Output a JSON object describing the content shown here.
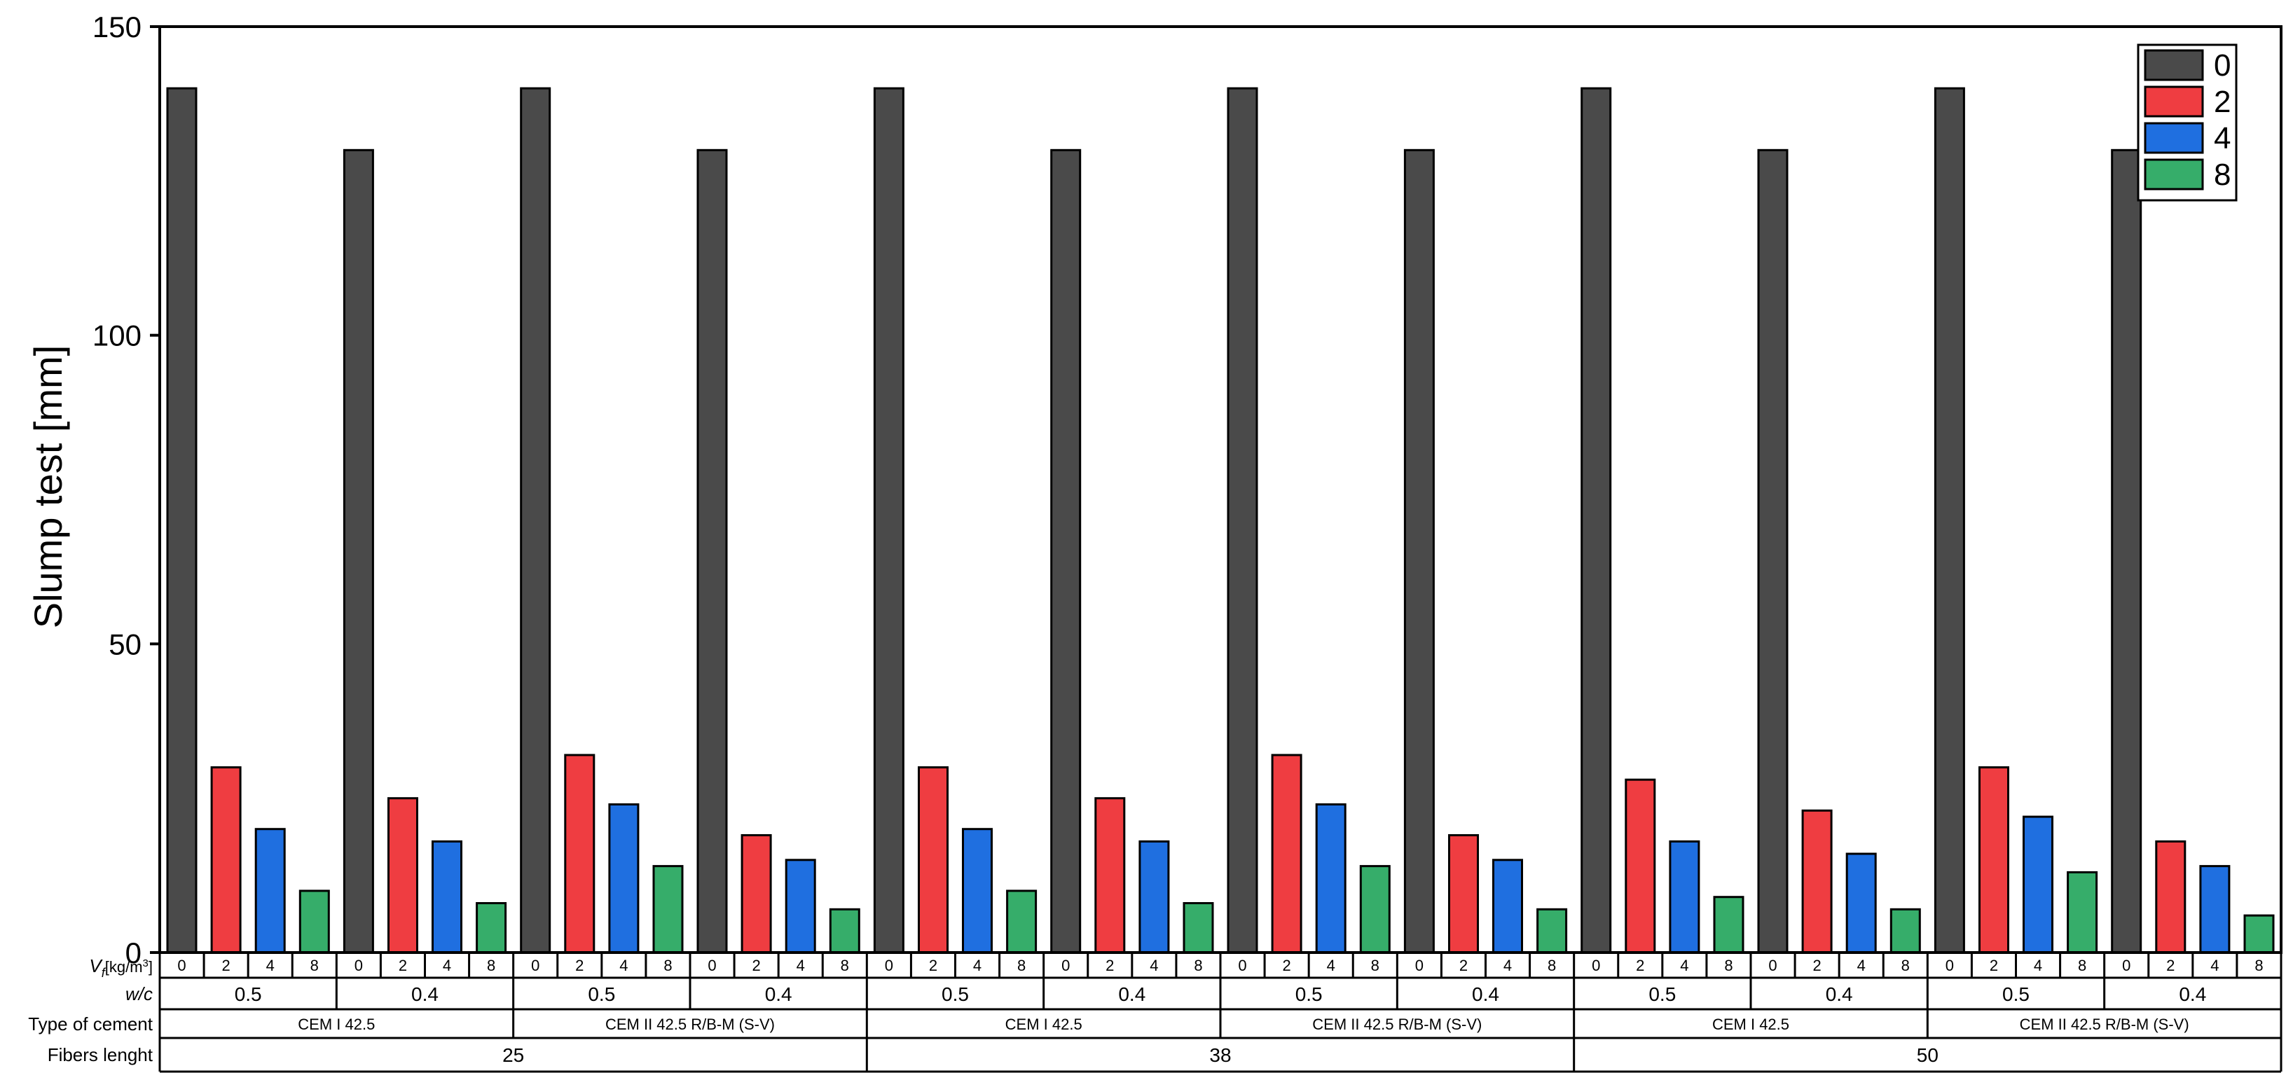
{
  "chart_data": {
    "type": "bar",
    "ylabel": "Slump test [mm]",
    "ylim": [
      0,
      150
    ],
    "yticks": [
      0,
      50,
      100,
      150
    ],
    "legend": {
      "placement": "top-right",
      "entries": [
        "0",
        "2",
        "4",
        "8"
      ]
    },
    "colors": {
      "0": "#4a4a4a",
      "2": "#ef3d41",
      "4": "#1f6fe0",
      "8": "#36ad6a"
    },
    "row_labels": {
      "vf": "V",
      "vf_sub": "f",
      "vf_unit": "[kg/m",
      "vf_sup": "3",
      "vf_close": "]",
      "wc": "w/c",
      "cement": "Type of cement",
      "fibers": "Fibers lenght"
    },
    "fiber_groups": [
      {
        "length": "25",
        "cements": [
          {
            "name": "CEM I 42.5",
            "wcs": [
              {
                "wc": "0.5",
                "values": {
                  "0": 140,
                  "2": 30,
                  "4": 20,
                  "8": 10
                }
              },
              {
                "wc": "0.4",
                "values": {
                  "0": 130,
                  "2": 25,
                  "4": 18,
                  "8": 8
                }
              }
            ]
          },
          {
            "name": "CEM II 42.5 R/B-M (S-V)",
            "wcs": [
              {
                "wc": "0.5",
                "values": {
                  "0": 140,
                  "2": 32,
                  "4": 24,
                  "8": 14
                }
              },
              {
                "wc": "0.4",
                "values": {
                  "0": 130,
                  "2": 19,
                  "4": 15,
                  "8": 7
                }
              }
            ]
          }
        ]
      },
      {
        "length": "38",
        "cements": [
          {
            "name": "CEM I 42.5",
            "wcs": [
              {
                "wc": "0.5",
                "values": {
                  "0": 140,
                  "2": 30,
                  "4": 20,
                  "8": 10
                }
              },
              {
                "wc": "0.4",
                "values": {
                  "0": 130,
                  "2": 25,
                  "4": 18,
                  "8": 8
                }
              }
            ]
          },
          {
            "name": "CEM II 42.5 R/B-M (S-V)",
            "wcs": [
              {
                "wc": "0.5",
                "values": {
                  "0": 140,
                  "2": 32,
                  "4": 24,
                  "8": 14
                }
              },
              {
                "wc": "0.4",
                "values": {
                  "0": 130,
                  "2": 19,
                  "4": 15,
                  "8": 7
                }
              }
            ]
          }
        ]
      },
      {
        "length": "50",
        "cements": [
          {
            "name": "CEM I 42.5",
            "wcs": [
              {
                "wc": "0.5",
                "values": {
                  "0": 140,
                  "2": 28,
                  "4": 18,
                  "8": 9
                }
              },
              {
                "wc": "0.4",
                "values": {
                  "0": 130,
                  "2": 23,
                  "4": 16,
                  "8": 7
                }
              }
            ]
          },
          {
            "name": "CEM II 42.5 R/B-M (S-V)",
            "wcs": [
              {
                "wc": "0.5",
                "values": {
                  "0": 140,
                  "2": 30,
                  "4": 22,
                  "8": 13
                }
              },
              {
                "wc": "0.4",
                "values": {
                  "0": 130,
                  "2": 18,
                  "4": 14,
                  "8": 6
                }
              }
            ]
          }
        ]
      }
    ]
  }
}
